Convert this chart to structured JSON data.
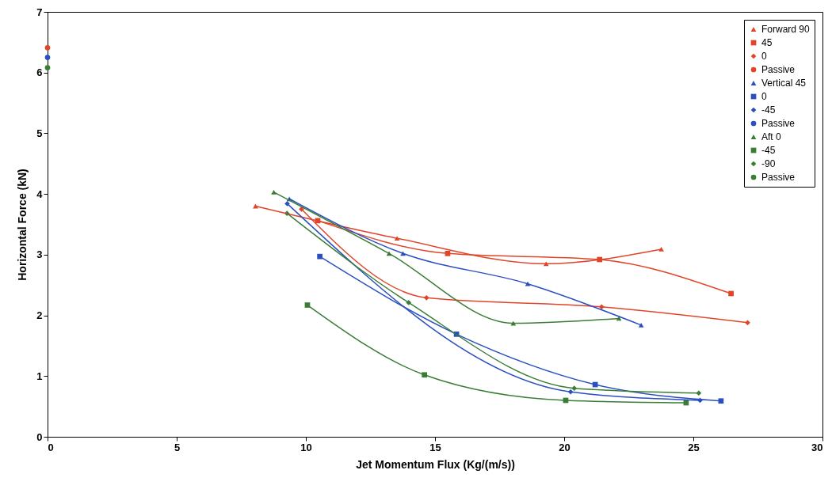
{
  "chart_data": {
    "type": "line",
    "xlabel": "Jet Momentum Flux (Kg/(m/s))",
    "ylabel": "Horizontal Force (kN)",
    "xlim": [
      0,
      30
    ],
    "ylim": [
      0,
      7
    ],
    "xticks": [
      0,
      5,
      10,
      15,
      20,
      25,
      30
    ],
    "yticks": [
      0,
      1,
      2,
      3,
      4,
      5,
      6,
      7
    ],
    "grid": false,
    "legend": "top right",
    "series": [
      {
        "name": "Forward 90",
        "color": "#e0452a",
        "marker": "triangle",
        "x": [
          8.05,
          13.53,
          19.3,
          23.76
        ],
        "values": [
          3.8,
          3.27,
          2.85,
          3.09
        ]
      },
      {
        "name": "45",
        "color": "#e0452a",
        "marker": "square",
        "x": [
          10.46,
          15.49,
          21.37,
          26.46
        ],
        "values": [
          3.56,
          3.02,
          2.92,
          2.36
        ]
      },
      {
        "name": "0",
        "color": "#e0452a",
        "marker": "diamond",
        "x": [
          9.83,
          14.67,
          21.45,
          27.1
        ],
        "values": [
          3.75,
          2.29,
          2.14,
          1.88
        ]
      },
      {
        "name": "Passive",
        "type": "scatter",
        "color": "#e0452a",
        "marker": "circle",
        "x": [
          0
        ],
        "values": [
          6.41
        ]
      },
      {
        "name": "Vertical 45",
        "color": "#2b4fc0",
        "marker": "triangle",
        "x": [
          9.36,
          13.76,
          18.59,
          22.98
        ],
        "values": [
          3.92,
          3.02,
          2.52,
          1.84
        ]
      },
      {
        "name": "0",
        "color": "#2b4fc0",
        "marker": "square",
        "x": [
          10.54,
          15.83,
          21.2,
          26.07
        ],
        "values": [
          2.97,
          1.69,
          0.86,
          0.59
        ]
      },
      {
        "name": "-45",
        "color": "#2b4fc0",
        "marker": "diamond",
        "x": [
          9.28,
          20.25,
          25.26
        ],
        "values": [
          3.84,
          0.74,
          0.6
        ]
      },
      {
        "name": "Passive",
        "type": "scatter",
        "color": "#2b4fc0",
        "marker": "circle",
        "x": [
          0
        ],
        "values": [
          6.25
        ]
      },
      {
        "name": "Aft 0",
        "color": "#3a7d35",
        "marker": "triangle",
        "x": [
          8.76,
          13.22,
          18.03,
          22.12
        ],
        "values": [
          4.03,
          3.02,
          1.87,
          1.95
        ]
      },
      {
        "name": "-45",
        "color": "#3a7d35",
        "marker": "square",
        "x": [
          10.06,
          14.59,
          20.06,
          24.72
        ],
        "values": [
          2.17,
          1.02,
          0.6,
          0.56
        ]
      },
      {
        "name": "-90",
        "color": "#3a7d35",
        "marker": "diamond",
        "x": [
          9.27,
          13.98,
          20.39,
          25.21
        ],
        "values": [
          3.68,
          2.21,
          0.8,
          0.72
        ]
      },
      {
        "name": "Passive",
        "type": "scatter",
        "color": "#3a7d35",
        "marker": "circle",
        "x": [
          0
        ],
        "values": [
          6.08
        ]
      }
    ]
  }
}
